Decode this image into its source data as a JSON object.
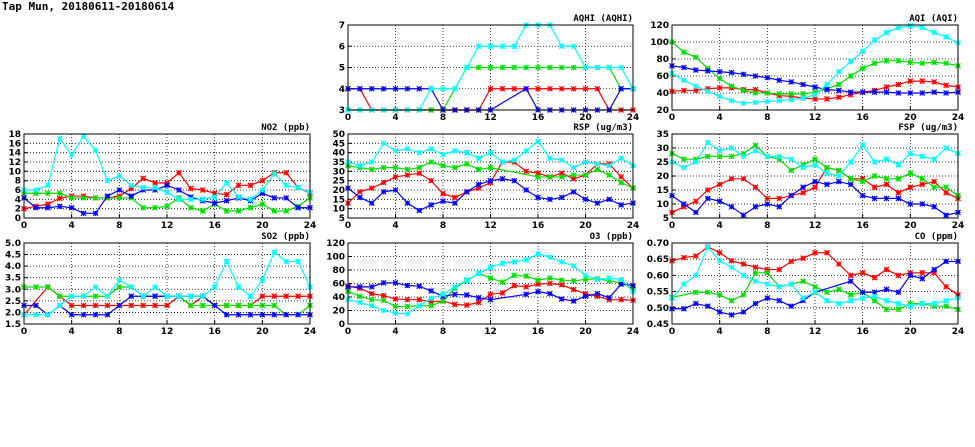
{
  "title": "Tap Mun, 20180611-20180614",
  "colors": {
    "red": "#ff0000",
    "green": "#00dd00",
    "blue": "#0000ff",
    "cyan": "#00ffff"
  },
  "chart_data": [
    {
      "id": "aqhi",
      "type": "line",
      "title": "AQHI (AQHI)",
      "ylim": [
        3,
        7
      ],
      "yticks": [
        "3",
        "4",
        "5",
        "6",
        "7"
      ],
      "xlim": [
        0,
        24
      ],
      "xticks": [
        "0",
        "4",
        "8",
        "12",
        "16",
        "20",
        "24"
      ],
      "grid": true,
      "series": [
        {
          "name": "red",
          "values": [
            4,
            4,
            3,
            3,
            3,
            3,
            3,
            3,
            3,
            3,
            3,
            3,
            4,
            4,
            4,
            4,
            4,
            4,
            4,
            4,
            4,
            4,
            3,
            3,
            3
          ]
        },
        {
          "name": "green",
          "values": [
            3,
            3,
            3,
            3,
            3,
            3,
            3,
            3,
            3,
            4,
            5,
            5,
            5,
            5,
            5,
            5,
            5,
            5,
            5,
            5,
            5,
            5,
            5,
            4,
            4
          ]
        },
        {
          "name": "blue",
          "values": [
            4,
            4,
            4,
            4,
            4,
            4,
            4,
            4,
            3,
            3,
            3,
            3,
            3,
            null,
            null,
            4,
            3,
            3,
            3,
            3,
            3,
            3,
            3,
            4,
            4
          ]
        },
        {
          "name": "cyan",
          "values": [
            3,
            3,
            3,
            3,
            3,
            3,
            3,
            4,
            4,
            4,
            5,
            6,
            6,
            6,
            6,
            7,
            7,
            7,
            6,
            6,
            5,
            5,
            5,
            5,
            4
          ]
        }
      ]
    },
    {
      "id": "aqi",
      "type": "line",
      "title": "AQI (AQI)",
      "ylim": [
        20,
        120
      ],
      "yticks": [
        "20",
        "40",
        "60",
        "80",
        "100",
        "120"
      ],
      "xlim": [
        0,
        24
      ],
      "xticks": [
        "0",
        "4",
        "8",
        "12",
        "16",
        "20",
        "24"
      ],
      "grid": true,
      "series": [
        {
          "name": "red",
          "values": [
            42,
            43,
            43,
            45,
            46,
            46,
            44,
            44,
            40,
            37,
            36,
            34,
            33,
            33,
            35,
            38,
            41,
            43,
            47,
            50,
            54,
            54,
            53,
            49,
            47
          ]
        },
        {
          "name": "green",
          "values": [
            100,
            88,
            82,
            69,
            57,
            48,
            43,
            40,
            40,
            39,
            39,
            39,
            41,
            45,
            50,
            60,
            69,
            75,
            78,
            78,
            76,
            75,
            76,
            75,
            72
          ]
        },
        {
          "name": "blue",
          "values": [
            72,
            70,
            67,
            66,
            65,
            64,
            62,
            60,
            58,
            55,
            53,
            50,
            47,
            44,
            43,
            41,
            41,
            41,
            41,
            40,
            40,
            40,
            41,
            40,
            41
          ]
        },
        {
          "name": "cyan",
          "values": [
            63,
            55,
            48,
            42,
            36,
            31,
            28,
            29,
            30,
            31,
            32,
            34,
            38,
            50,
            65,
            77,
            89,
            102,
            111,
            117,
            119,
            117,
            111,
            106,
            99
          ]
        }
      ]
    },
    {
      "id": "no2",
      "type": "line",
      "title": "NO2 (ppb)",
      "ylim": [
        0,
        18
      ],
      "yticks": [
        "0",
        "2",
        "4",
        "6",
        "8",
        "10",
        "12",
        "14",
        "16",
        "18"
      ],
      "xlim": [
        0,
        24
      ],
      "xticks": [
        "0",
        "4",
        "8",
        "12",
        "16",
        "20",
        "24"
      ],
      "grid": true,
      "series": [
        {
          "name": "red",
          "values": [
            2,
            2.5,
            3,
            4.2,
            4.7,
            4.7,
            4.3,
            4.3,
            4.7,
            6.3,
            8.5,
            7.5,
            7.5,
            9.7,
            6.3,
            6,
            5.3,
            5,
            7,
            7,
            8,
            9.7,
            9.7,
            6.5,
            5.3
          ]
        },
        {
          "name": "green",
          "values": [
            5.3,
            5.3,
            5.3,
            5.3,
            4.3,
            4.3,
            4.3,
            4.3,
            4.3,
            4.3,
            2.2,
            2.2,
            2.5,
            4.3,
            2.2,
            1.5,
            3,
            1.5,
            1.5,
            2.2,
            3,
            1.5,
            1.5,
            2.5,
            4.3
          ]
        },
        {
          "name": "blue",
          "values": [
            4.3,
            2.2,
            2.2,
            2.5,
            2.2,
            1,
            1,
            4.7,
            6,
            4.7,
            6,
            6,
            7,
            6,
            4.5,
            3.7,
            3.2,
            3.7,
            4.3,
            3.7,
            5.3,
            4.3,
            4.3,
            2.2,
            2.2
          ]
        },
        {
          "name": "cyan",
          "values": [
            6,
            6,
            7,
            17,
            13.5,
            17.5,
            14.5,
            8,
            9,
            7,
            6.5,
            6.5,
            5.5,
            4,
            4,
            4,
            4.5,
            7.5,
            4.5,
            4,
            6,
            9.5,
            7,
            6.5,
            5.5
          ]
        }
      ]
    },
    {
      "id": "rsp",
      "type": "line",
      "title": "RSP (ug/m3)",
      "ylim": [
        5,
        50
      ],
      "yticks": [
        "5",
        "10",
        "15",
        "20",
        "25",
        "30",
        "35",
        "40",
        "45",
        "50"
      ],
      "xlim": [
        0,
        24
      ],
      "xticks": [
        "0",
        "4",
        "8",
        "12",
        "16",
        "20",
        "24"
      ],
      "grid": true,
      "series": [
        {
          "name": "red",
          "values": [
            13,
            19,
            21,
            24,
            27,
            28,
            29,
            25,
            18,
            16,
            19,
            21,
            24,
            35,
            35,
            30,
            29,
            27,
            29,
            26,
            28,
            34,
            34,
            27,
            21
          ]
        },
        {
          "name": "green",
          "values": [
            33,
            32,
            31,
            32,
            32,
            31,
            32,
            35,
            33,
            32,
            34,
            31,
            32,
            null,
            null,
            null,
            27,
            27,
            27,
            28,
            28,
            31,
            28,
            24,
            21
          ]
        },
        {
          "name": "blue",
          "values": [
            21,
            16,
            13,
            19,
            20,
            13,
            9,
            12,
            14,
            13,
            19,
            23,
            25,
            26,
            25,
            20,
            16,
            15,
            16,
            19,
            15,
            13,
            15,
            12,
            13
          ]
        },
        {
          "name": "cyan",
          "values": [
            35,
            33,
            35,
            45,
            41,
            42,
            40,
            42,
            39,
            41,
            40,
            37,
            40,
            35,
            36,
            41,
            46,
            37,
            36,
            32,
            35,
            34,
            33,
            37,
            33
          ]
        }
      ]
    },
    {
      "id": "fsp",
      "type": "line",
      "title": "FSP (ug/m3)",
      "ylim": [
        5,
        35
      ],
      "yticks": [
        "5",
        "10",
        "15",
        "20",
        "25",
        "30",
        "35"
      ],
      "xlim": [
        0,
        24
      ],
      "xticks": [
        "0",
        "4",
        "8",
        "12",
        "16",
        "20",
        "24"
      ],
      "grid": true,
      "series": [
        {
          "name": "red",
          "values": [
            7,
            9,
            11,
            15,
            17,
            19,
            19,
            16,
            12,
            12,
            13,
            14,
            16,
            23,
            22,
            19,
            19,
            16,
            17,
            14,
            16,
            17,
            18,
            14,
            12
          ]
        },
        {
          "name": "green",
          "values": [
            28,
            26,
            26,
            27,
            27,
            27,
            28,
            31,
            27,
            26,
            22,
            24,
            26,
            23,
            22,
            19,
            18,
            20,
            19,
            19,
            21,
            19,
            16,
            16,
            13
          ]
        },
        {
          "name": "blue",
          "values": [
            13,
            10,
            7,
            12,
            11,
            9,
            6,
            9,
            10,
            9,
            13,
            16,
            18,
            17,
            18,
            17,
            13,
            12,
            12,
            12,
            10,
            10,
            9,
            6,
            7
          ]
        },
        {
          "name": "cyan",
          "values": [
            25,
            23,
            25,
            32,
            29,
            30,
            27,
            29,
            27,
            27,
            26,
            23,
            24,
            21,
            20,
            25,
            31,
            25,
            26,
            24,
            28,
            27,
            26,
            30,
            28
          ]
        }
      ]
    },
    {
      "id": "so2",
      "type": "line",
      "title": "SO2 (ppb)",
      "ylim": [
        1.5,
        5.0
      ],
      "yticks": [
        "1.5",
        "2.0",
        "2.5",
        "3.0",
        "3.5",
        "4.0",
        "4.5",
        "5.0"
      ],
      "xlim": [
        0,
        24
      ],
      "xticks": [
        "0",
        "4",
        "8",
        "12",
        "16",
        "20",
        "24"
      ],
      "grid": true,
      "series": [
        {
          "name": "red",
          "values": [
            1.9,
            null,
            3.1,
            2.7,
            2.3,
            2.3,
            2.3,
            2.3,
            2.3,
            2.3,
            2.3,
            2.3,
            2.3,
            2.7,
            2.3,
            2.7,
            2.3,
            2.3,
            2.3,
            2.3,
            2.7,
            2.7,
            2.7,
            2.7,
            2.7
          ]
        },
        {
          "name": "green",
          "values": [
            3.1,
            3.1,
            3.1,
            2.7,
            2.7,
            2.7,
            2.7,
            2.7,
            3.1,
            3.1,
            2.7,
            2.7,
            2.7,
            2.7,
            2.3,
            2.3,
            2.3,
            2.3,
            2.3,
            2.3,
            2.3,
            2.3,
            1.9,
            1.9,
            2.3
          ]
        },
        {
          "name": "blue",
          "values": [
            2.3,
            2.3,
            1.9,
            2.3,
            1.9,
            1.9,
            1.9,
            1.9,
            2.3,
            2.7,
            2.7,
            2.7,
            2.7,
            2.7,
            2.7,
            2.7,
            2.3,
            1.9,
            1.9,
            1.9,
            1.9,
            1.9,
            1.9,
            1.9,
            1.9
          ]
        },
        {
          "name": "cyan",
          "values": [
            1.9,
            1.9,
            1.9,
            2.3,
            2.7,
            2.7,
            3.1,
            2.7,
            3.4,
            3.1,
            2.7,
            3.1,
            2.7,
            2.7,
            2.7,
            2.7,
            3.1,
            4.2,
            3.1,
            2.7,
            3.4,
            4.6,
            4.2,
            4.2,
            3.1
          ]
        }
      ]
    },
    {
      "id": "o3",
      "type": "line",
      "title": "O3 (ppb)",
      "ylim": [
        0,
        120
      ],
      "yticks": [
        "0",
        "20",
        "40",
        "60",
        "80",
        "100",
        "120"
      ],
      "xlim": [
        0,
        24
      ],
      "xticks": [
        "0",
        "4",
        "8",
        "12",
        "16",
        "20",
        "24"
      ],
      "grid": true,
      "series": [
        {
          "name": "red",
          "values": [
            56,
            53,
            45,
            42,
            37,
            36,
            36,
            33,
            34,
            29,
            28,
            32,
            44,
            46,
            57,
            55,
            59,
            60,
            58,
            51,
            45,
            41,
            36,
            36,
            35
          ]
        },
        {
          "name": "green",
          "values": [
            48,
            41,
            36,
            35,
            26,
            26,
            27,
            27,
            34,
            53,
            64,
            75,
            68,
            62,
            72,
            71,
            65,
            68,
            65,
            64,
            66,
            67,
            64,
            61,
            52
          ]
        },
        {
          "name": "blue",
          "values": [
            55,
            55,
            55,
            61,
            61,
            57,
            56,
            49,
            41,
            44,
            43,
            39,
            36,
            null,
            null,
            44,
            48,
            45,
            37,
            34,
            41,
            45,
            39,
            59,
            57
          ]
        },
        {
          "name": "cyan",
          "values": [
            36,
            32,
            27,
            20,
            16,
            15,
            27,
            38,
            44,
            55,
            65,
            75,
            84,
            90,
            92,
            95,
            104,
            99,
            92,
            86,
            72,
            66,
            68,
            66,
            48
          ]
        }
      ]
    },
    {
      "id": "co",
      "type": "line",
      "title": "CO (ppm)",
      "ylim": [
        0.45,
        0.7
      ],
      "yticks": [
        "0.45",
        "0.50",
        "0.55",
        "0.60",
        "0.65",
        "0.70"
      ],
      "xlim": [
        0,
        24
      ],
      "xticks": [
        "0",
        "4",
        "8",
        "12",
        "16",
        "20",
        "24"
      ],
      "grid": true,
      "series": [
        {
          "name": "red",
          "values": [
            0.645,
            0.655,
            0.66,
            0.688,
            0.67,
            0.645,
            0.635,
            0.625,
            0.618,
            0.618,
            0.643,
            0.653,
            0.67,
            0.67,
            0.635,
            0.6,
            0.608,
            0.593,
            0.618,
            0.6,
            0.608,
            0.608,
            0.608,
            0.565,
            0.54
          ]
        },
        {
          "name": "green",
          "values": [
            0.532,
            null,
            0.548,
            0.548,
            0.54,
            0.522,
            0.54,
            0.608,
            0.608,
            0.565,
            0.573,
            0.582,
            0.565,
            0.548,
            0.557,
            0.54,
            0.548,
            0.522,
            0.495,
            0.495,
            0.513,
            0.513,
            0.505,
            0.505,
            0.495
          ]
        },
        {
          "name": "blue",
          "values": [
            0.497,
            0.497,
            0.513,
            0.505,
            0.487,
            0.478,
            0.487,
            0.513,
            0.53,
            0.522,
            0.505,
            0.522,
            0.548,
            null,
            null,
            0.582,
            0.548,
            0.548,
            0.557,
            0.548,
            0.6,
            0.59,
            0.618,
            0.643,
            0.643
          ]
        },
        {
          "name": "cyan",
          "values": [
            0.53,
            0.573,
            0.6,
            0.687,
            0.645,
            0.625,
            0.6,
            0.582,
            0.573,
            0.565,
            0.573,
            0.53,
            0.548,
            0.522,
            0.513,
            0.522,
            0.53,
            0.535,
            0.522,
            0.513,
            0.505,
            0.513,
            0.513,
            0.522,
            0.53
          ]
        }
      ]
    }
  ]
}
